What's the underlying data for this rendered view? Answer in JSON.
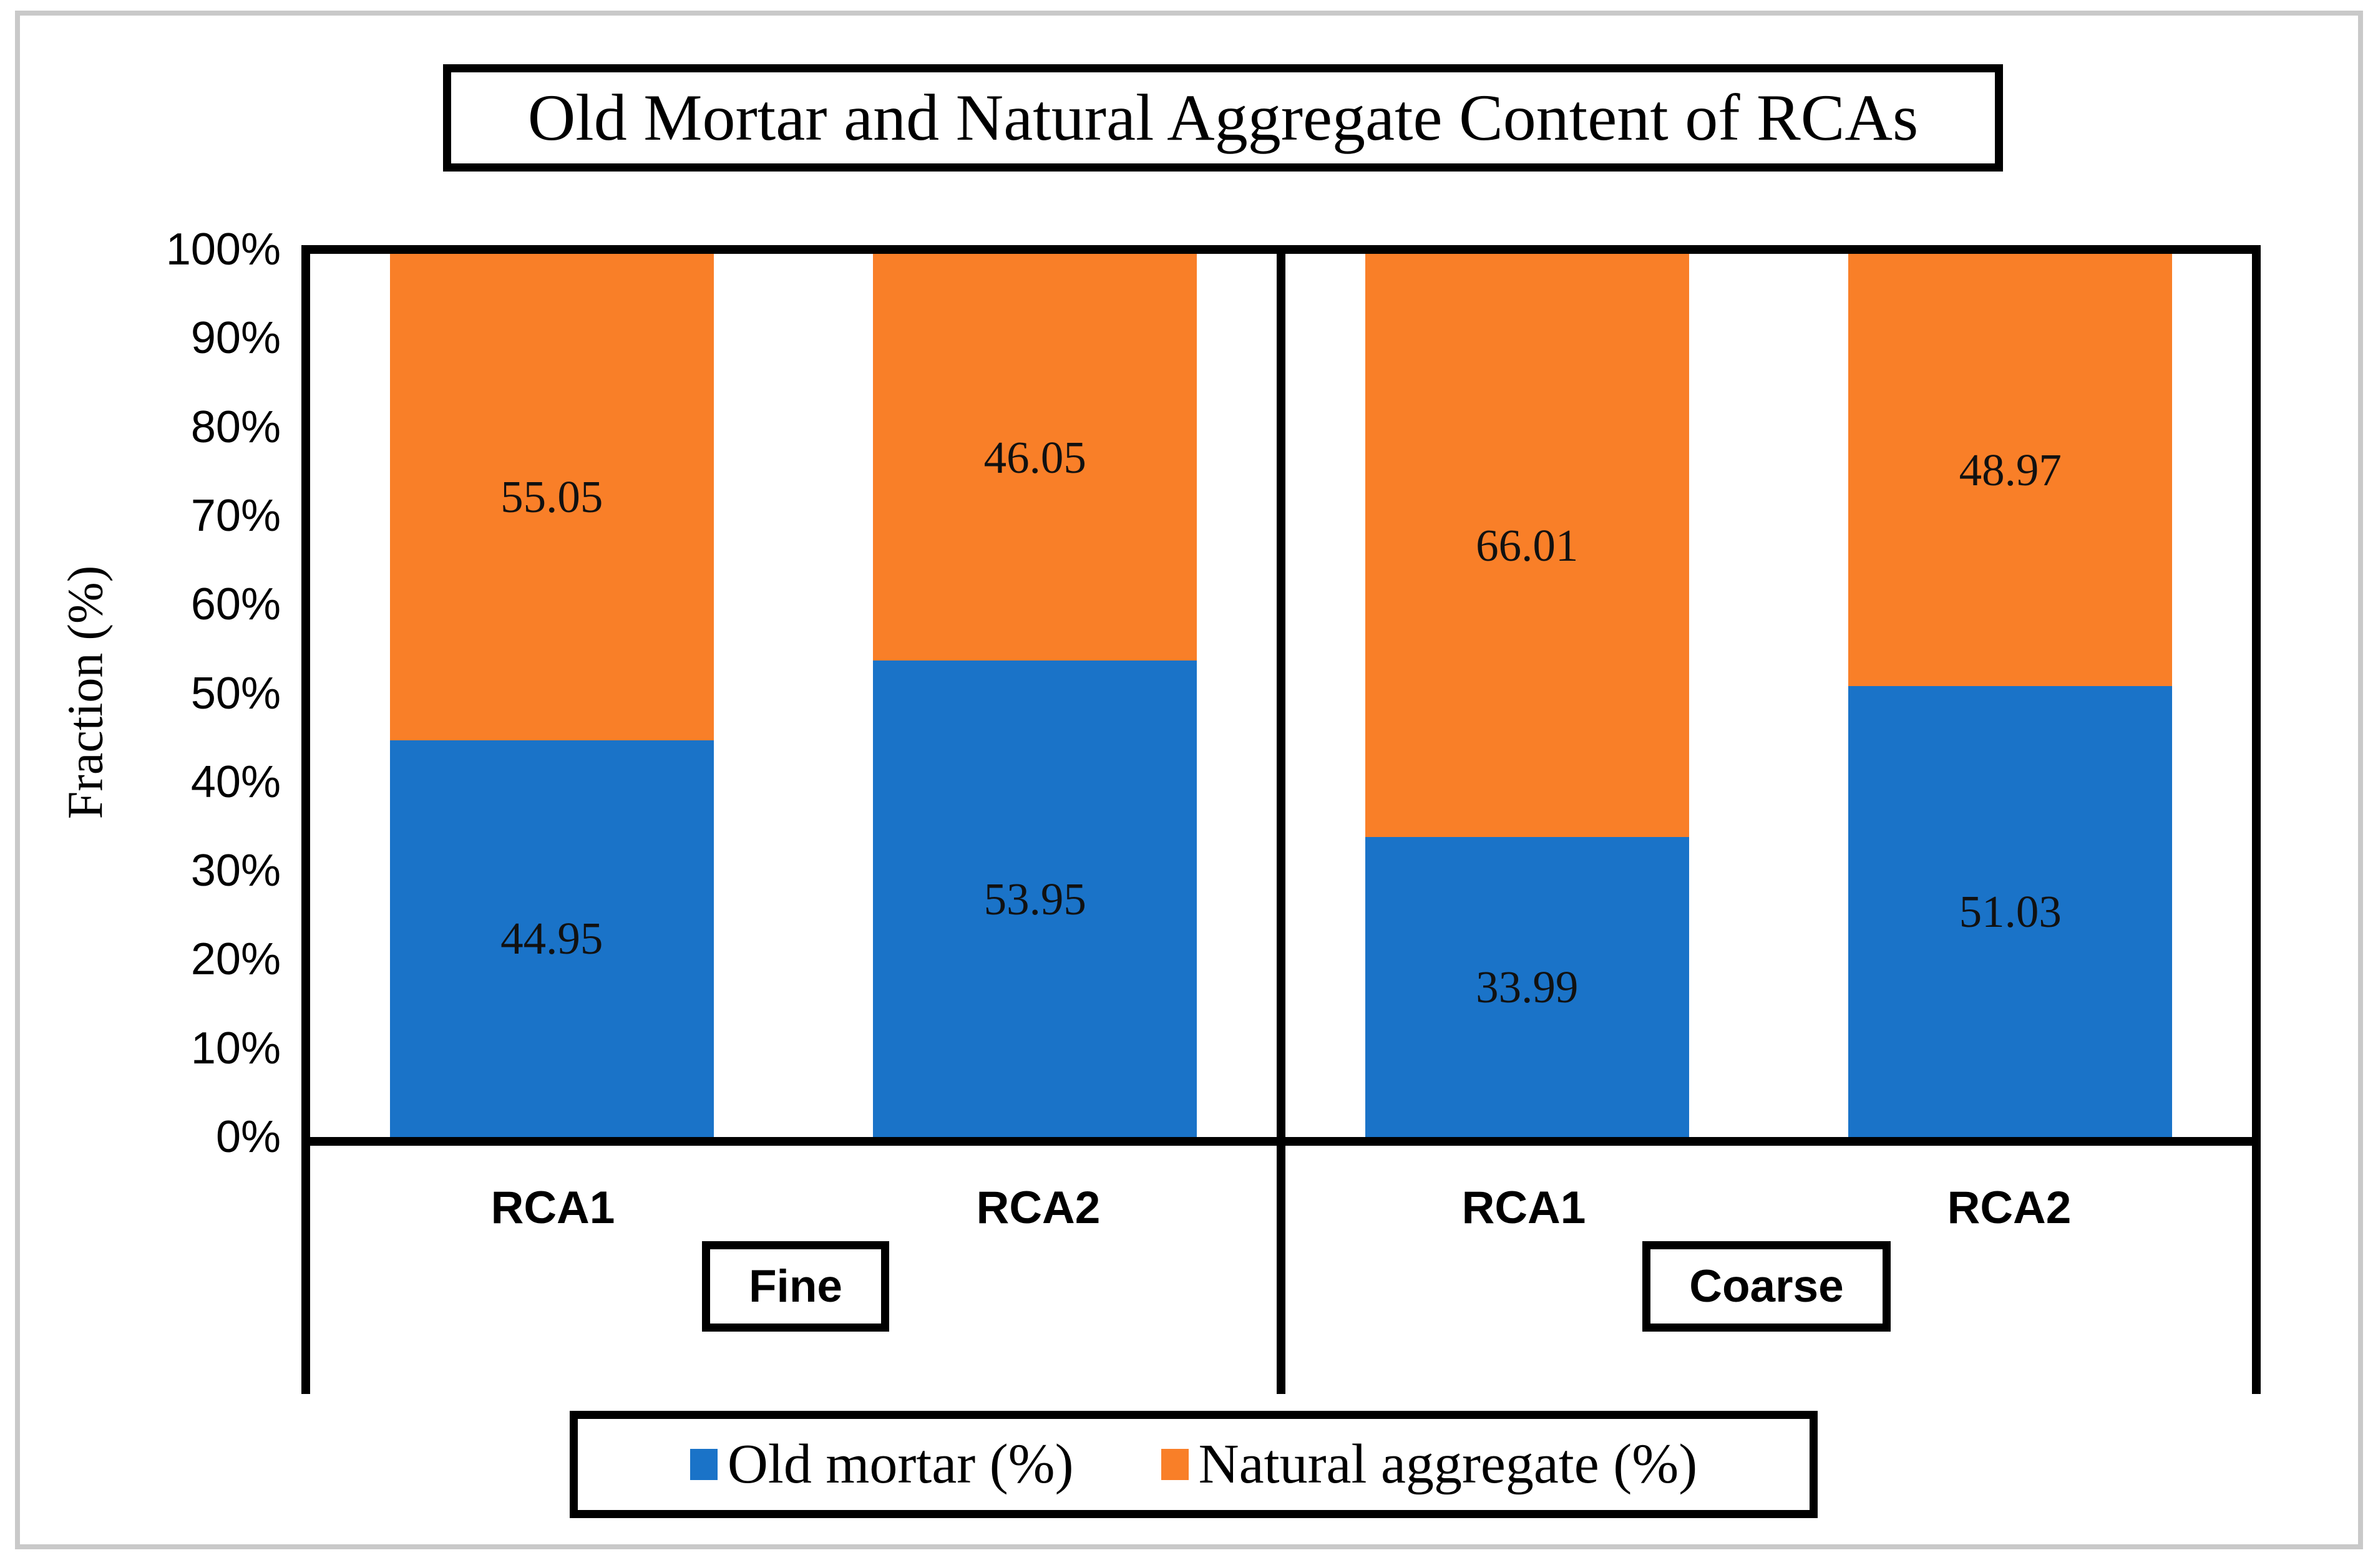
{
  "chart_data": {
    "type": "bar",
    "stacked": true,
    "title": "Old Mortar and Natural Aggregate Content of RCAs",
    "ylabel": "Fraction (%)",
    "ylim": [
      0,
      100
    ],
    "ytick_labels": [
      "100%",
      "90%",
      "80%",
      "70%",
      "60%",
      "50%",
      "40%",
      "30%",
      "20%",
      "10%",
      "0%"
    ],
    "grid": false,
    "legend_position": "bottom",
    "series": [
      {
        "name": "Old mortar (%)",
        "color": "#1a73c8"
      },
      {
        "name": "Natural aggregate (%)",
        "color": "#f97f28"
      }
    ],
    "groups": [
      {
        "label": "Fine",
        "bars": [
          {
            "category": "RCA1",
            "segments": [
              {
                "series": "Old mortar (%)",
                "value": 44.95,
                "label": "44.95"
              },
              {
                "series": "Natural aggregate (%)",
                "value": 55.05,
                "label": "55.05"
              }
            ]
          },
          {
            "category": "RCA2",
            "segments": [
              {
                "series": "Old mortar (%)",
                "value": 53.95,
                "label": "53.95"
              },
              {
                "series": "Natural aggregate (%)",
                "value": 46.05,
                "label": "46.05"
              }
            ]
          }
        ]
      },
      {
        "label": "Coarse",
        "bars": [
          {
            "category": "RCA1",
            "segments": [
              {
                "series": "Old mortar (%)",
                "value": 33.99,
                "label": "33.99"
              },
              {
                "series": "Natural aggregate (%)",
                "value": 66.01,
                "label": "66.01"
              }
            ]
          },
          {
            "category": "RCA2",
            "segments": [
              {
                "series": "Old mortar (%)",
                "value": 51.03,
                "label": "51.03"
              },
              {
                "series": "Natural aggregate (%)",
                "value": 48.97,
                "label": "48.97"
              }
            ]
          }
        ]
      }
    ],
    "colors": {
      "axis_line": "#000000",
      "frame_border": "#c9c9c9",
      "background": "#ffffff"
    }
  }
}
